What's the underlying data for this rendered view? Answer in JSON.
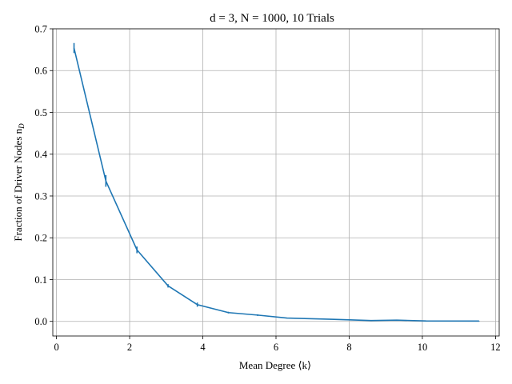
{
  "chart_data": {
    "type": "line",
    "title": "d = 3, N = 1000, 10 Trials",
    "xlabel": "Mean Degree ⟨k⟩",
    "ylabel": "Fraction of Driver Nodes n",
    "ylabel_subscript": "D",
    "xlim": [
      -0.1,
      12.1
    ],
    "ylim": [
      -0.035,
      0.7
    ],
    "xticks": [
      0,
      2,
      4,
      6,
      8,
      10,
      12
    ],
    "xtick_labels": [
      "0",
      "2",
      "4",
      "6",
      "8",
      "10",
      "12"
    ],
    "yticks": [
      0.0,
      0.1,
      0.2,
      0.3,
      0.4,
      0.5,
      0.6,
      0.7
    ],
    "ytick_labels": [
      "0.0",
      "0.1",
      "0.2",
      "0.3",
      "0.4",
      "0.5",
      "0.6",
      "0.7"
    ],
    "grid": true,
    "color": "#1f77b4",
    "series": [
      {
        "x": [
          0.48,
          1.35,
          2.2,
          3.05,
          3.85,
          4.7,
          5.5,
          6.3,
          7.5,
          8.6,
          9.3,
          10.1,
          11.55
        ],
        "y": [
          0.654,
          0.336,
          0.171,
          0.085,
          0.04,
          0.021,
          0.015,
          0.008,
          0.005,
          0.002,
          0.003,
          0.001,
          0.0008
        ],
        "err": [
          0.012,
          0.014,
          0.008,
          0.004,
          0.005,
          0.002,
          0.002,
          0.001,
          0.001,
          0.001,
          0.001,
          0.001,
          0.0005
        ]
      }
    ]
  }
}
